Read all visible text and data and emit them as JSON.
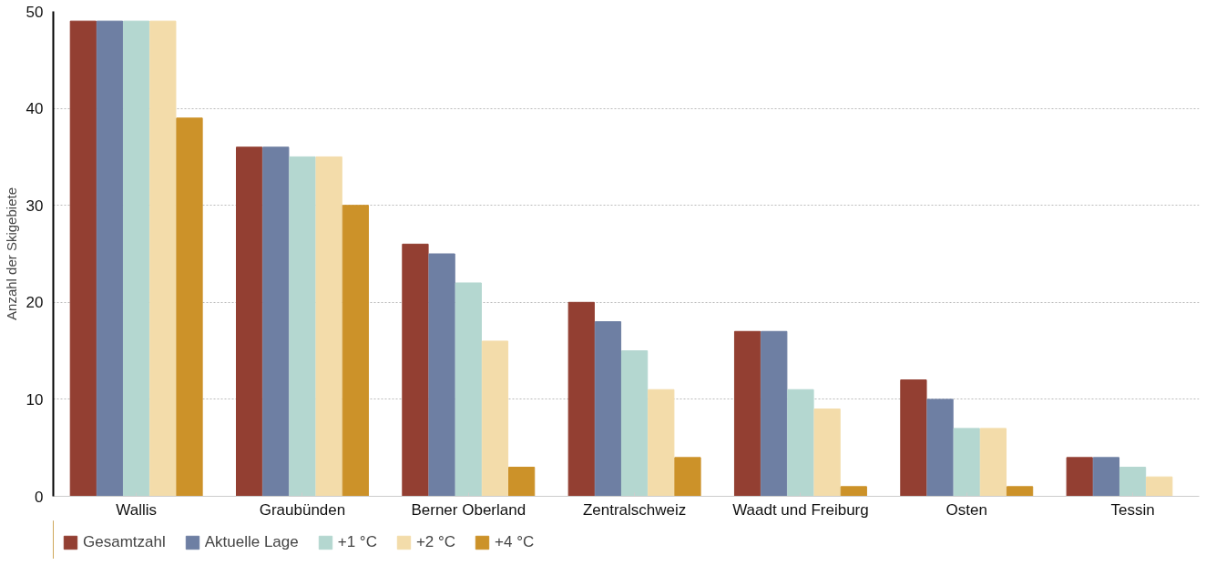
{
  "chart_data": {
    "type": "bar",
    "ylabel": "Anzahl der Skigebiete",
    "categories": [
      "Wallis",
      "Graubünden",
      "Berner Oberland",
      "Zentralschweiz",
      "Waadt und Freiburg",
      "Osten",
      "Tessin"
    ],
    "series": [
      {
        "name": "Gesamtzahl",
        "color": "#933f32",
        "values": [
          49,
          36,
          26,
          20,
          17,
          12,
          4
        ]
      },
      {
        "name": "Aktuelle Lage",
        "color": "#6e7fa3",
        "values": [
          49,
          36,
          25,
          18,
          17,
          10,
          4
        ]
      },
      {
        "name": "+1 °C",
        "color": "#b4d7d0",
        "values": [
          49,
          35,
          22,
          15,
          11,
          7,
          3
        ]
      },
      {
        "name": "+2 °C",
        "color": "#f3dcaa",
        "values": [
          49,
          35,
          16,
          11,
          9,
          7,
          2
        ]
      },
      {
        "name": "+4 °C",
        "color": "#cc9229",
        "values": [
          39,
          30,
          3,
          4,
          1,
          1,
          0
        ]
      }
    ],
    "ylim": [
      0,
      50
    ],
    "yticks": [
      0,
      10,
      20,
      30,
      40,
      50
    ],
    "grid": "y",
    "legend": "bottom left"
  }
}
